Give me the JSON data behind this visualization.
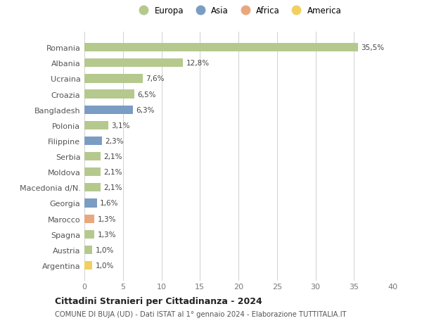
{
  "countries": [
    "Romania",
    "Albania",
    "Ucraina",
    "Croazia",
    "Bangladesh",
    "Polonia",
    "Filippine",
    "Serbia",
    "Moldova",
    "Macedonia d/N.",
    "Georgia",
    "Marocco",
    "Spagna",
    "Austria",
    "Argentina"
  ],
  "values": [
    35.5,
    12.8,
    7.6,
    6.5,
    6.3,
    3.1,
    2.3,
    2.1,
    2.1,
    2.1,
    1.6,
    1.3,
    1.3,
    1.0,
    1.0
  ],
  "labels": [
    "35,5%",
    "12,8%",
    "7,6%",
    "6,5%",
    "6,3%",
    "3,1%",
    "2,3%",
    "2,1%",
    "2,1%",
    "2,1%",
    "1,6%",
    "1,3%",
    "1,3%",
    "1,0%",
    "1,0%"
  ],
  "continents": [
    "Europa",
    "Europa",
    "Europa",
    "Europa",
    "Asia",
    "Europa",
    "Asia",
    "Europa",
    "Europa",
    "Europa",
    "Asia",
    "Africa",
    "Europa",
    "Europa",
    "America"
  ],
  "colors": {
    "Europa": "#b5c98e",
    "Asia": "#7b9dc4",
    "Africa": "#e8a87c",
    "America": "#f0d060"
  },
  "legend_order": [
    "Europa",
    "Asia",
    "Africa",
    "America"
  ],
  "xlim": [
    0,
    40
  ],
  "xticks": [
    0,
    5,
    10,
    15,
    20,
    25,
    30,
    35,
    40
  ],
  "title": "Cittadini Stranieri per Cittadinanza - 2024",
  "subtitle": "COMUNE DI BUJA (UD) - Dati ISTAT al 1° gennaio 2024 - Elaborazione TUTTITALIA.IT",
  "bg_color": "#ffffff",
  "grid_color": "#d0d0d0",
  "bar_height": 0.55
}
